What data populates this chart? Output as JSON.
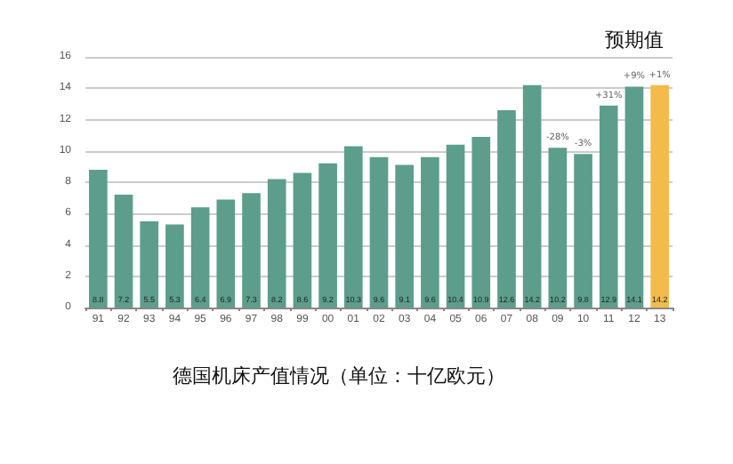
{
  "chart_data": {
    "type": "bar",
    "title": "德国机床产值情况（单位：十亿欧元）",
    "categories": [
      "91",
      "92",
      "93",
      "94",
      "95",
      "96",
      "97",
      "98",
      "99",
      "00",
      "01",
      "02",
      "03",
      "04",
      "05",
      "06",
      "07",
      "08",
      "09",
      "10",
      "11",
      "12",
      "13"
    ],
    "values": [
      8.8,
      7.2,
      5.5,
      5.3,
      6.4,
      6.9,
      7.3,
      8.2,
      8.6,
      9.2,
      10.3,
      9.6,
      9.1,
      9.6,
      10.4,
      10.9,
      12.6,
      14.2,
      10.2,
      9.8,
      12.9,
      14.1,
      14.2
    ],
    "colors": [
      "#5c9e8b",
      "#5c9e8b",
      "#5c9e8b",
      "#5c9e8b",
      "#5c9e8b",
      "#5c9e8b",
      "#5c9e8b",
      "#5c9e8b",
      "#5c9e8b",
      "#5c9e8b",
      "#5c9e8b",
      "#5c9e8b",
      "#5c9e8b",
      "#5c9e8b",
      "#5c9e8b",
      "#5c9e8b",
      "#5c9e8b",
      "#5c9e8b",
      "#5c9e8b",
      "#5c9e8b",
      "#5c9e8b",
      "#5c9e8b",
      "#f2bb4c"
    ],
    "data_labels": true,
    "ylim": [
      0,
      16
    ],
    "yticks": [
      0,
      2,
      4,
      6,
      8,
      10,
      12,
      14,
      16
    ],
    "grid": "y",
    "annotations": [
      "预期值",
      {
        "text": "-28%",
        "x": "09",
        "y": 10.2
      },
      {
        "text": "-3%",
        "x": "10",
        "y": 9.8
      },
      {
        "text": "+31%",
        "x": "11",
        "y": 12.9
      },
      {
        "text": "+9%",
        "x": "12",
        "y": 14.1
      },
      {
        "text": "+1%",
        "x": "13",
        "y": 14.2
      }
    ]
  }
}
